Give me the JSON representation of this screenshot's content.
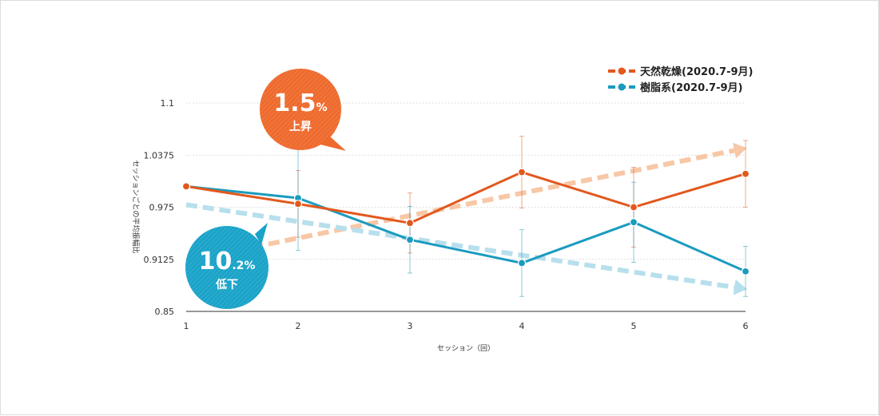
{
  "chart_data": {
    "type": "line",
    "x": [
      1,
      2,
      3,
      4,
      5,
      6
    ],
    "xlabel": "セッション（回）",
    "ylabel": "セッションごとの平均振幅比",
    "ylim": [
      0.85,
      1.1
    ],
    "yticks": [
      "1.1",
      "1.0375",
      "0.975",
      "0.9125",
      "0.85"
    ],
    "ytick_values": [
      1.1,
      1.0375,
      0.975,
      0.9125,
      0.85
    ],
    "grid": true,
    "legend_position": "top-right",
    "series": [
      {
        "name": "天然乾燥(2020.7-9月)",
        "color": "#e2581d",
        "values": [
          1.0,
          0.979,
          0.956,
          1.017,
          0.975,
          1.015
        ],
        "error": [
          0.0,
          0.04,
          0.036,
          0.043,
          0.048,
          0.04
        ],
        "trend": [
          0.911,
          1.043
        ]
      },
      {
        "name": "樹脂系(2020.7-9月)",
        "color": "#1a9bbf",
        "values": [
          1.0,
          0.986,
          0.936,
          0.908,
          0.957,
          0.898
        ],
        "error": [
          0.0,
          0.063,
          0.04,
          0.04,
          0.048,
          0.03
        ],
        "trend": [
          0.978,
          0.879
        ]
      }
    ],
    "annotations": [
      {
        "big": "1.5",
        "unit": "%",
        "label": "上昇",
        "color": "#ee6a2d"
      },
      {
        "big": "10",
        "unit": ".2%",
        "label": "低下",
        "color": "#1aa3c8"
      }
    ]
  }
}
